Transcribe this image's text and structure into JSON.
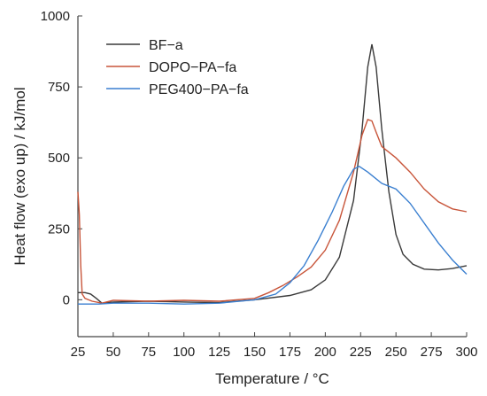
{
  "chart_data": {
    "type": "line",
    "xlabel": "Temperature / °C",
    "ylabel": "Heat flow (exo up) / kJ/mol",
    "xlim": [
      25,
      300
    ],
    "ylim": [
      -130,
      1000
    ],
    "x_ticks": [
      25,
      50,
      75,
      100,
      125,
      150,
      175,
      200,
      225,
      250,
      275,
      300
    ],
    "y_ticks": [
      0,
      250,
      500,
      750,
      1000
    ],
    "grid": false,
    "legend_position": "top-left",
    "series": [
      {
        "name": "BF−a",
        "color": "#3a3a3a",
        "points": [
          [
            25,
            25
          ],
          [
            30,
            25
          ],
          [
            34,
            20
          ],
          [
            38,
            5
          ],
          [
            42,
            -12
          ],
          [
            50,
            -8
          ],
          [
            75,
            -5
          ],
          [
            100,
            -8
          ],
          [
            125,
            -10
          ],
          [
            150,
            0
          ],
          [
            175,
            15
          ],
          [
            190,
            35
          ],
          [
            200,
            70
          ],
          [
            210,
            150
          ],
          [
            220,
            350
          ],
          [
            226,
            600
          ],
          [
            230,
            820
          ],
          [
            233,
            900
          ],
          [
            236,
            820
          ],
          [
            240,
            600
          ],
          [
            245,
            380
          ],
          [
            250,
            230
          ],
          [
            255,
            160
          ],
          [
            262,
            125
          ],
          [
            270,
            108
          ],
          [
            280,
            105
          ],
          [
            290,
            110
          ],
          [
            300,
            120
          ]
        ]
      },
      {
        "name": "DOPO−PA−fa",
        "color": "#c8553a",
        "points": [
          [
            25,
            380
          ],
          [
            26,
            300
          ],
          [
            27,
            120
          ],
          [
            28,
            20
          ],
          [
            30,
            5
          ],
          [
            35,
            -5
          ],
          [
            42,
            -12
          ],
          [
            50,
            -2
          ],
          [
            75,
            -5
          ],
          [
            100,
            -2
          ],
          [
            125,
            -5
          ],
          [
            150,
            5
          ],
          [
            160,
            25
          ],
          [
            170,
            50
          ],
          [
            180,
            80
          ],
          [
            190,
            115
          ],
          [
            200,
            175
          ],
          [
            210,
            280
          ],
          [
            220,
            450
          ],
          [
            226,
            580
          ],
          [
            230,
            635
          ],
          [
            233,
            630
          ],
          [
            236,
            590
          ],
          [
            240,
            540
          ],
          [
            250,
            500
          ],
          [
            260,
            450
          ],
          [
            270,
            390
          ],
          [
            280,
            345
          ],
          [
            290,
            320
          ],
          [
            300,
            310
          ]
        ]
      },
      {
        "name": "PEG400−PA−fa",
        "color": "#3a7fd0",
        "points": [
          [
            25,
            -15
          ],
          [
            40,
            -15
          ],
          [
            50,
            -12
          ],
          [
            75,
            -12
          ],
          [
            100,
            -15
          ],
          [
            125,
            -12
          ],
          [
            150,
            0
          ],
          [
            165,
            20
          ],
          [
            175,
            60
          ],
          [
            185,
            120
          ],
          [
            195,
            210
          ],
          [
            205,
            310
          ],
          [
            213,
            400
          ],
          [
            220,
            460
          ],
          [
            224,
            470
          ],
          [
            230,
            450
          ],
          [
            240,
            410
          ],
          [
            250,
            390
          ],
          [
            260,
            340
          ],
          [
            270,
            270
          ],
          [
            280,
            200
          ],
          [
            290,
            140
          ],
          [
            300,
            90
          ]
        ]
      }
    ]
  }
}
